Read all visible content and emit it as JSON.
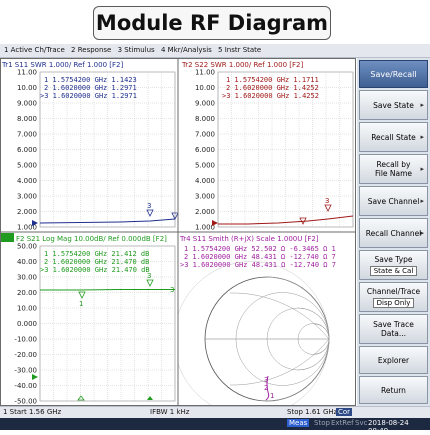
{
  "header": {
    "title": "Module RF Diagram"
  },
  "menu": [
    "1 Active Ch/Trace",
    "2 Response",
    "3 Stimulus",
    "4 Mkr/Analysis",
    "5 Instr State"
  ],
  "colors": {
    "trace1": "#1f2f8f",
    "trace2": "#a01818",
    "trace3": "#1f9b1f",
    "trace4": "#a020a0"
  },
  "panels": {
    "tl": {
      "header": "Tr1 S11 SWR 1.000/ Ref 1.000 [F2]",
      "markers": [
        "1  1.5754200 GHz  1.1423",
        "2  1.6020000 GHz  1.2971",
        ">3  1.6020000 GHz  1.2971"
      ],
      "yticks": [
        "11.00",
        "10.00",
        "9.000",
        "8.000",
        "7.000",
        "6.000",
        "5.000",
        "4.000",
        "3.000",
        "2.000",
        "1.000"
      ]
    },
    "tr": {
      "header": "Tr2 S22 SWR 1.000/ Ref 1.000 [F2]",
      "markers": [
        "1  1.5754200 GHz  1.1711",
        "2  1.6020000 GHz  1.4252",
        ">3  1.6020000 GHz  1.4252"
      ],
      "yticks": [
        "11.00",
        "10.00",
        "9.000",
        "8.000",
        "7.000",
        "6.000",
        "5.000",
        "4.000",
        "3.000",
        "2.000",
        "1.000"
      ]
    },
    "bl": {
      "header": "F2 S21 Log Mag 10.00dB/ Ref 0.000dB [F2]",
      "markers": [
        "1  1.5754200 GHz  21.412 dB",
        "2  1.6020000 GHz  21.470 dB",
        ">3  1.6020000 GHz  21.470 dB"
      ],
      "yticks": [
        "50.00",
        "40.00",
        "30.00",
        "20.00",
        "10.00",
        "0.000",
        "-10.00",
        "-20.00",
        "-30.00",
        "-40.00",
        "-50.00"
      ]
    },
    "br": {
      "header": "Tr4 S11 Smith (R+jX) Scale 1.000U [F2]",
      "markers": [
        "1  1.5754200 GHz  52.502 Ω  -6.3465 Ω  1",
        "2  1.6020000 GHz  48.431 Ω  -12.740 Ω  7",
        ">3  1.6020000 GHz  48.431 Ω  -12.740 Ω  7"
      ]
    }
  },
  "sidebar": {
    "title": "Save/Recall",
    "buttons": [
      {
        "label": "Save State",
        "sub": ""
      },
      {
        "label": "Recall State",
        "sub": ""
      },
      {
        "label": "Recall by File Name",
        "sub": ""
      },
      {
        "label": "Save Channel",
        "sub": ""
      },
      {
        "label": "Recall Channel",
        "sub": ""
      },
      {
        "label": "Save Type",
        "sub": "State & Cal"
      },
      {
        "label": "Channel/Trace",
        "sub": "Disp Only"
      },
      {
        "label": "Save Trace Data...",
        "sub": ""
      },
      {
        "label": "Explorer",
        "sub": ""
      },
      {
        "label": "Return",
        "sub": ""
      }
    ]
  },
  "status": {
    "start": "1  Start 1.56 GHz",
    "ifbw": "IFBW 1 kHz",
    "stop": "Stop 1.61 GHz",
    "cor": "Cor"
  },
  "bottom": {
    "meas": "Meas",
    "stop": "Stop",
    "extref": "ExtRef",
    "svc": "Svc",
    "datetime": "2018-08-24 08:49"
  }
}
